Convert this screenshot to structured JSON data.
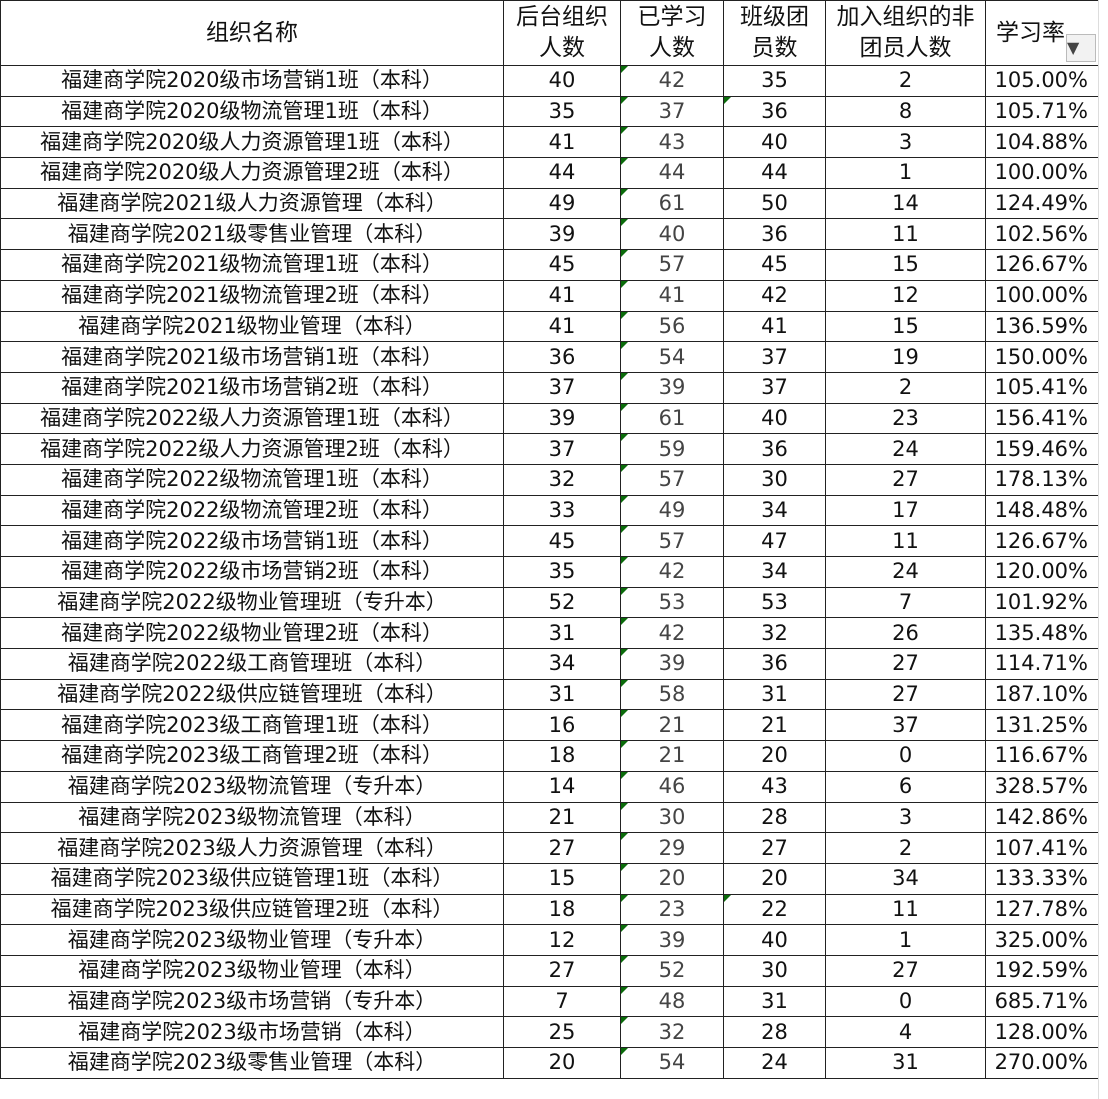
{
  "headers": [
    "组织名称",
    "后台组织人数",
    "已学习人数",
    "班级团员数",
    "加入组织的非团员人数",
    "学习率"
  ],
  "header_lines": [
    [
      "组织名称"
    ],
    [
      "后台组织",
      "人数"
    ],
    [
      "已学习",
      "人数"
    ],
    [
      "班级团",
      "员数"
    ],
    [
      "加入组织的非",
      "团员人数"
    ],
    [
      "学习率"
    ]
  ],
  "filter_icon": "filter-icon",
  "rows": [
    [
      "福建商学院2020级市场营销1班（本科）",
      "40",
      "42",
      "35",
      "2",
      "105.00%"
    ],
    [
      "福建商学院2020级物流管理1班（本科）",
      "35",
      "37",
      "36",
      "8",
      "105.71%"
    ],
    [
      "福建商学院2020级人力资源管理1班（本科）",
      "41",
      "43",
      "40",
      "3",
      "104.88%"
    ],
    [
      "福建商学院2020级人力资源管理2班（本科）",
      "44",
      "44",
      "44",
      "1",
      "100.00%"
    ],
    [
      "福建商学院2021级人力资源管理（本科）",
      "49",
      "61",
      "50",
      "14",
      "124.49%"
    ],
    [
      "福建商学院2021级零售业管理（本科）",
      "39",
      "40",
      "36",
      "11",
      "102.56%"
    ],
    [
      "福建商学院2021级物流管理1班（本科）",
      "45",
      "57",
      "45",
      "15",
      "126.67%"
    ],
    [
      "福建商学院2021级物流管理2班（本科）",
      "41",
      "41",
      "42",
      "12",
      "100.00%"
    ],
    [
      "福建商学院2021级物业管理（本科）",
      "41",
      "56",
      "41",
      "15",
      "136.59%"
    ],
    [
      "福建商学院2021级市场营销1班（本科）",
      "36",
      "54",
      "37",
      "19",
      "150.00%"
    ],
    [
      "福建商学院2021级市场营销2班（本科）",
      "37",
      "39",
      "37",
      "2",
      "105.41%"
    ],
    [
      "福建商学院2022级人力资源管理1班（本科）",
      "39",
      "61",
      "40",
      "23",
      "156.41%"
    ],
    [
      "福建商学院2022级人力资源管理2班（本科）",
      "37",
      "59",
      "36",
      "24",
      "159.46%"
    ],
    [
      "福建商学院2022级物流管理1班（本科）",
      "32",
      "57",
      "30",
      "27",
      "178.13%"
    ],
    [
      "福建商学院2022级物流管理2班（本科）",
      "33",
      "49",
      "34",
      "17",
      "148.48%"
    ],
    [
      "福建商学院2022级市场营销1班（本科）",
      "45",
      "57",
      "47",
      "11",
      "126.67%"
    ],
    [
      "福建商学院2022级市场营销2班（本科）",
      "35",
      "42",
      "34",
      "24",
      "120.00%"
    ],
    [
      "福建商学院2022级物业管理班（专升本）",
      "52",
      "53",
      "53",
      "7",
      "101.92%"
    ],
    [
      "福建商学院2022级物业管理2班（本科）",
      "31",
      "42",
      "32",
      "26",
      "135.48%"
    ],
    [
      "福建商学院2022级工商管理班（本科）",
      "34",
      "39",
      "36",
      "27",
      "114.71%"
    ],
    [
      "福建商学院2022级供应链管理班（本科）",
      "31",
      "58",
      "31",
      "27",
      "187.10%"
    ],
    [
      "福建商学院2023级工商管理1班（本科）",
      "16",
      "21",
      "21",
      "37",
      "131.25%"
    ],
    [
      "福建商学院2023级工商管理2班（本科）",
      "18",
      "21",
      "20",
      "0",
      "116.67%"
    ],
    [
      "福建商学院2023级物流管理（专升本）",
      "14",
      "46",
      "43",
      "6",
      "328.57%"
    ],
    [
      "福建商学院2023级物流管理（本科）",
      "21",
      "30",
      "28",
      "3",
      "142.86%"
    ],
    [
      "福建商学院2023级人力资源管理（本科）",
      "27",
      "29",
      "27",
      "2",
      "107.41%"
    ],
    [
      "福建商学院2023级供应链管理1班（本科）",
      "15",
      "20",
      "20",
      "34",
      "133.33%"
    ],
    [
      "福建商学院2023级供应链管理2班（本科）",
      "18",
      "23",
      "22",
      "11",
      "127.78%"
    ],
    [
      "福建商学院2023级物业管理（专升本）",
      "12",
      "39",
      "40",
      "1",
      "325.00%"
    ],
    [
      "福建商学院2023级物业管理（本科）",
      "27",
      "52",
      "30",
      "27",
      "192.59%"
    ],
    [
      "福建商学院2023级市场营销（专升本）",
      "7",
      "48",
      "31",
      "0",
      "685.71%"
    ],
    [
      "福建商学院2023级市场营销（本科）",
      "25",
      "32",
      "28",
      "4",
      "128.00%"
    ],
    [
      "福建商学院2023级零售业管理（本科）",
      "20",
      "54",
      "24",
      "31",
      "270.00%"
    ]
  ]
}
